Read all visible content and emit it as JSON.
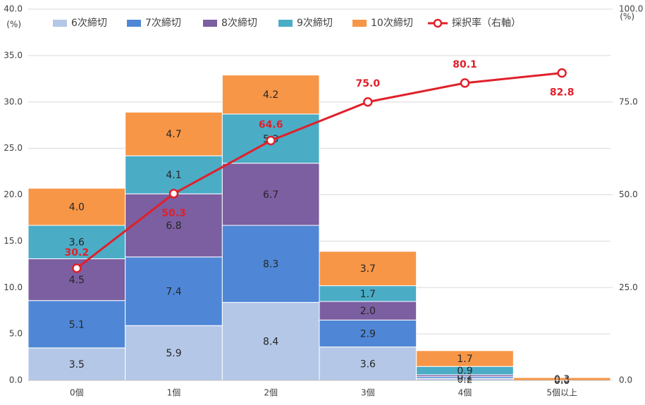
{
  "chart_data": {
    "type": "bar_line",
    "y_unit": "(%)",
    "y2_unit": "(%)",
    "categories": [
      "0個",
      "1個",
      "2個",
      "3個",
      "4個",
      "5個以上"
    ],
    "series": [
      {
        "name": "6次締切",
        "color": "#b4c7e7",
        "values": [
          3.5,
          5.9,
          8.4,
          3.6,
          0.2,
          0.0
        ],
        "value_labels": [
          "3.5",
          "5.9",
          "8.4",
          "3.6",
          "0.2",
          "0.0"
        ]
      },
      {
        "name": "7次締切",
        "color": "#4f87d6",
        "values": [
          5.1,
          7.4,
          8.3,
          2.9,
          0.2,
          0.0
        ],
        "value_labels": [
          "5.1",
          "7.4",
          "8.3",
          "2.9",
          "0.2",
          "0.0"
        ]
      },
      {
        "name": "8次締切",
        "color": "#7b5fa1",
        "values": [
          4.5,
          6.8,
          6.7,
          2.0,
          0.2,
          0.0
        ],
        "value_labels": [
          "4.5",
          "6.8",
          "6.7",
          "2.0",
          "0.2",
          "0.0"
        ]
      },
      {
        "name": "9次締切",
        "color": "#4bacc6",
        "values": [
          3.6,
          4.1,
          5.3,
          1.7,
          0.9,
          0.0
        ],
        "value_labels": [
          "3.6",
          "4.1",
          "5.3",
          "1.7",
          "0.9",
          "0.0"
        ]
      },
      {
        "name": "10次締切",
        "color": "#f79646",
        "values": [
          4.0,
          4.7,
          4.2,
          3.7,
          1.7,
          0.3
        ],
        "value_labels": [
          "4.0",
          "4.7",
          "4.2",
          "3.7",
          "1.7",
          "0.3"
        ]
      },
      {
        "name": "採択率（右軸）",
        "type": "line",
        "axis": "y2",
        "color": "#e0202a",
        "values": [
          30.2,
          50.3,
          64.6,
          75.0,
          80.1,
          82.8
        ],
        "value_labels": [
          "30.2",
          "50.3",
          "64.6",
          "75.0",
          "80.1",
          "82.8"
        ]
      }
    ],
    "ylim": [
      0,
      40
    ],
    "yticks": [
      {
        "value": 0,
        "label": "0.0"
      },
      {
        "value": 5,
        "label": "5.0"
      },
      {
        "value": 10,
        "label": "10.0"
      },
      {
        "value": 15,
        "label": "15.0"
      },
      {
        "value": 20,
        "label": "20.0"
      },
      {
        "value": 25,
        "label": "25.0"
      },
      {
        "value": 30,
        "label": "30.0"
      },
      {
        "value": 35,
        "label": "35.0"
      },
      {
        "value": 40,
        "label": "40.0"
      }
    ],
    "y2lim": [
      0,
      100
    ],
    "y2ticks": [
      {
        "value": 0,
        "label": "0.0"
      },
      {
        "value": 25,
        "label": "25.0"
      },
      {
        "value": 50,
        "label": "50.0"
      },
      {
        "value": 75,
        "label": "75.0"
      },
      {
        "value": 100,
        "label": "100.0"
      }
    ],
    "grid": true
  }
}
